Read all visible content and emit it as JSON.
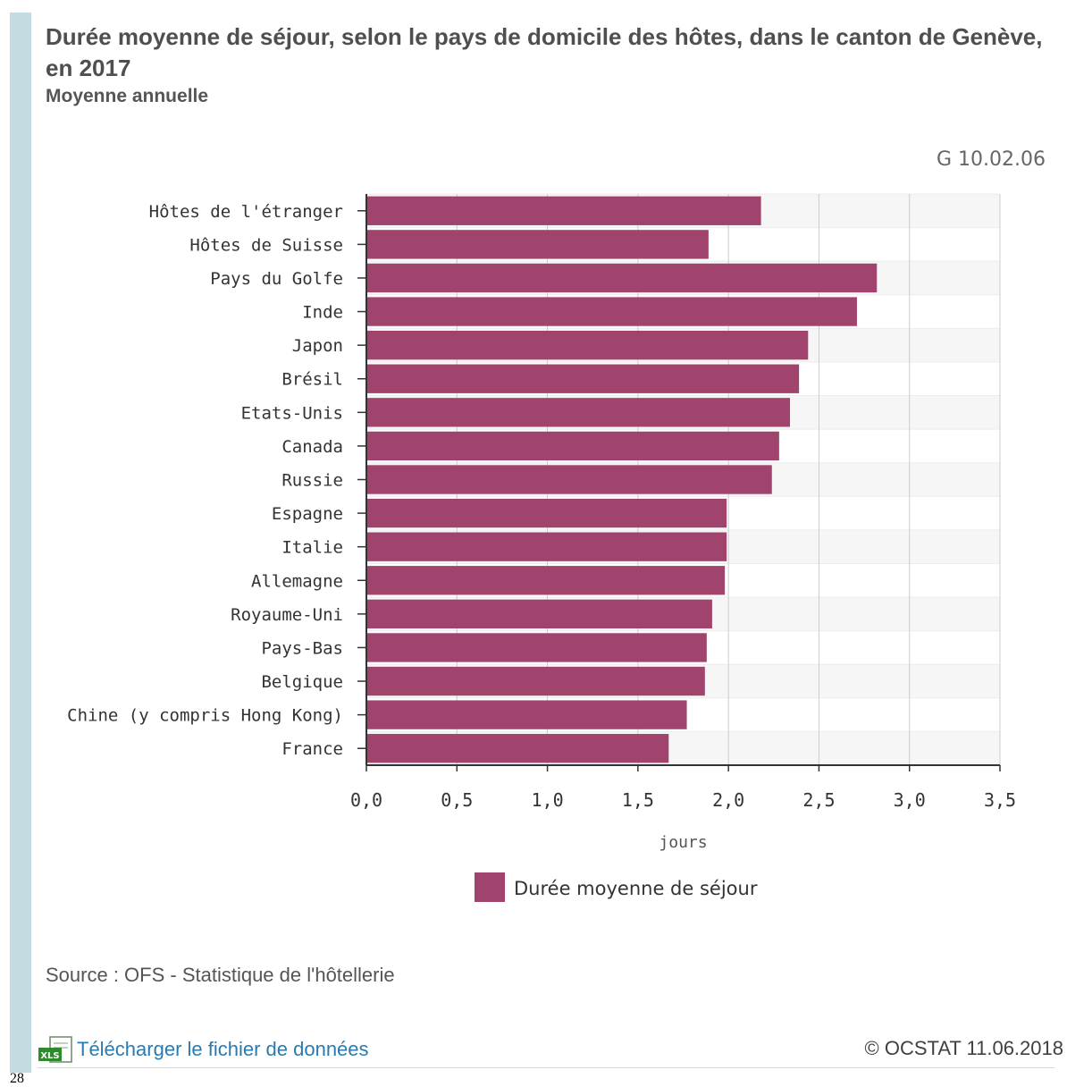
{
  "header": {
    "title": "Durée moyenne de séjour, selon le pays de domicile des hôtes, dans le canton de Genève, en 2017",
    "subtitle": "Moyenne annuelle",
    "code": "G 10.02.06"
  },
  "chart_data": {
    "type": "bar",
    "orientation": "horizontal",
    "categories": [
      "Hôtes de l'étranger",
      "Hôtes de Suisse",
      "Pays du Golfe",
      "Inde",
      "Japon",
      "Brésil",
      "Etats-Unis",
      "Canada",
      "Russie",
      "Espagne",
      "Italie",
      "Allemagne",
      "Royaume-Uni",
      "Pays-Bas",
      "Belgique",
      "Chine (y compris Hong Kong)",
      "France"
    ],
    "series": [
      {
        "name": "Durée moyenne de séjour",
        "values": [
          2.18,
          1.89,
          2.82,
          2.71,
          2.44,
          2.39,
          2.34,
          2.28,
          2.24,
          1.99,
          1.99,
          1.98,
          1.91,
          1.88,
          1.87,
          1.77,
          1.67
        ]
      }
    ],
    "xlabel": "jours",
    "xlim": [
      0,
      3.5
    ],
    "xticks": [
      "0,0",
      "0,5",
      "1,0",
      "1,5",
      "2,0",
      "2,5",
      "3,0",
      "3,5"
    ],
    "legend_position": "bottom-center",
    "grid": true,
    "colors": {
      "bar": "#a0446e",
      "grid": "#cccccc",
      "band": "#f6f6f6",
      "axis": "#333333",
      "text": "#333333"
    }
  },
  "footer": {
    "source": "Source : OFS - Statistique de l'hôtellerie",
    "download_icon": "xls-file-icon",
    "download_label": "Télécharger le fichier de données",
    "copyright": "© OCSTAT 11.06.2018"
  },
  "page_number": "28"
}
